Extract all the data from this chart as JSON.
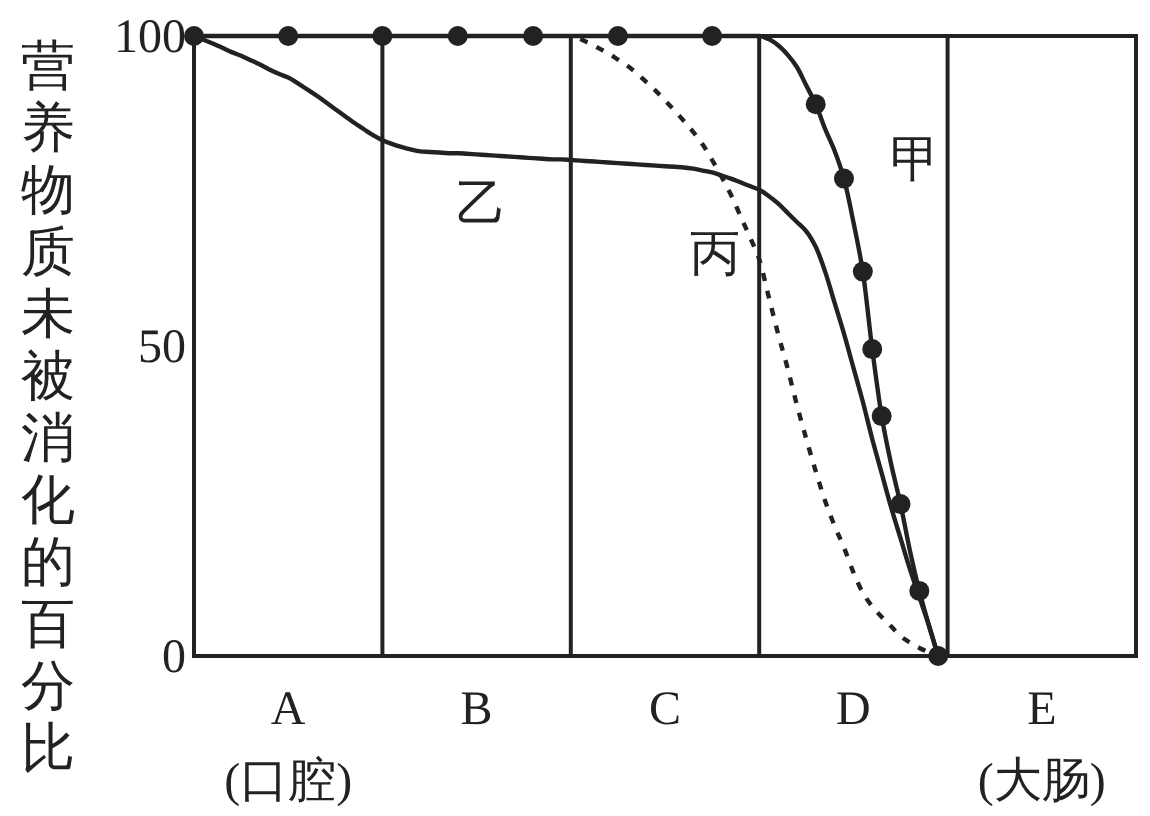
{
  "chart_data": {
    "type": "line",
    "ylabel": "营养物质未被消化的百分比",
    "ylim": [
      0,
      100
    ],
    "yticks": [
      0,
      50,
      100
    ],
    "categories": [
      null,
      null,
      null,
      null,
      null,
      null,
      null,
      null,
      null,
      null,
      "A\n(口腔)",
      null,
      null,
      null,
      null,
      null,
      null,
      null,
      null,
      null,
      null,
      null,
      null,
      null,
      null,
      null,
      null,
      null,
      null,
      null,
      "B",
      null,
      null,
      null,
      null,
      null,
      null,
      null,
      null,
      null,
      null,
      null,
      null,
      null,
      null,
      null,
      null,
      null,
      null,
      null,
      "C",
      null,
      null,
      null,
      null,
      null,
      null,
      null,
      null,
      null,
      null,
      null,
      null,
      null,
      null,
      null,
      null,
      null,
      null,
      null,
      "D",
      null,
      null,
      null,
      null,
      null,
      null,
      null,
      null,
      null,
      null,
      null,
      null,
      null,
      null,
      null,
      null,
      null,
      null,
      null,
      "E\n(大肠)",
      null,
      null,
      null,
      null,
      null,
      null,
      null,
      null,
      null,
      null
    ],
    "marker": "none",
    "series": [
      {
        "name": "甲",
        "color": "#222222",
        "line_style": "solid",
        "values": [
          null,
          100,
          100,
          100,
          100,
          100,
          100,
          100,
          100,
          100,
          100,
          100,
          100,
          100,
          100,
          100,
          100,
          100,
          100,
          100,
          100,
          100,
          100,
          100,
          100,
          100,
          100,
          100,
          100,
          100,
          100,
          100,
          100,
          100,
          100,
          100,
          100,
          100,
          100,
          100,
          100,
          100,
          100,
          100,
          100,
          100,
          100,
          100,
          100,
          100,
          100,
          100,
          100,
          100,
          100,
          100,
          100,
          100,
          100,
          100,
          100,
          99.5,
          98.5,
          97,
          95,
          92,
          89,
          85,
          81.5,
          77,
          70,
          62,
          49.5,
          38.7,
          31,
          24.5,
          17,
          10.5,
          5,
          0,
          null,
          null,
          null,
          null,
          null,
          null,
          null,
          null,
          null,
          null,
          null,
          null,
          null,
          null,
          null,
          null,
          null,
          null,
          null,
          null,
          null
        ]
      },
      {
        "type": "scatter",
        "color": "#222222",
        "marker": "circle",
        "values": [
          100,
          null,
          null,
          null,
          null,
          null,
          null,
          null,
          null,
          null,
          100,
          null,
          null,
          null,
          null,
          null,
          null,
          null,
          null,
          null,
          100,
          null,
          null,
          null,
          null,
          null,
          null,
          null,
          100,
          null,
          null,
          null,
          null,
          null,
          null,
          null,
          100,
          null,
          null,
          null,
          null,
          null,
          null,
          null,
          null,
          100,
          null,
          null,
          null,
          null,
          null,
          null,
          null,
          null,
          null,
          100,
          null,
          null,
          null,
          null,
          null,
          null,
          null,
          null,
          null,
          null,
          89,
          null,
          null,
          77,
          null,
          62,
          49.5,
          38.7,
          null,
          24.5,
          null,
          10.5,
          null,
          0,
          null,
          null,
          null,
          null,
          null,
          null,
          null,
          null,
          null,
          null,
          null,
          null,
          null,
          null,
          null,
          null,
          null,
          null,
          null,
          null,
          null
        ]
      },
      {
        "name": "乙",
        "color": "#222222",
        "line_style": "solid",
        "values": [
          100,
          99.4,
          98.8,
          98.1,
          97.4,
          96.8,
          96.1,
          95.4,
          94.6,
          93.9,
          93.3,
          92.4,
          91.4,
          90.4,
          89.3,
          88.2,
          87.1,
          86,
          85,
          84,
          83.2,
          82.6,
          82.1,
          81.7,
          81.4,
          81.3,
          81.2,
          81.1,
          81.1,
          81,
          80.9,
          80.8,
          80.7,
          80.6,
          80.5,
          80.4,
          80.3,
          80.2,
          80.1,
          80.1,
          80,
          79.9,
          79.8,
          79.7,
          79.6,
          79.5,
          79.4,
          79.3,
          79.2,
          79.1,
          79,
          78.9,
          78.8,
          78.6,
          78.3,
          78,
          77.5,
          77,
          76.4,
          75.8,
          75.2,
          74.2,
          73,
          71.5,
          70,
          68.5,
          66,
          62,
          57,
          52,
          46.5,
          41,
          35,
          29.5,
          24,
          19,
          14,
          9.5,
          5,
          0,
          null,
          null,
          null,
          null,
          null,
          null,
          null,
          null,
          null,
          null,
          null,
          null,
          null,
          null,
          null,
          null,
          null,
          null,
          null,
          null,
          null
        ]
      },
      {
        "name": "丙",
        "color": "#222222",
        "line_style": "dashed",
        "values": [
          null,
          null,
          null,
          null,
          null,
          null,
          null,
          null,
          null,
          null,
          null,
          null,
          null,
          null,
          null,
          null,
          null,
          null,
          null,
          null,
          null,
          null,
          null,
          null,
          null,
          null,
          null,
          null,
          null,
          null,
          null,
          null,
          null,
          null,
          null,
          null,
          null,
          null,
          null,
          null,
          null,
          99.5,
          98.8,
          98,
          97.2,
          96.2,
          95.2,
          94,
          92.6,
          91.2,
          89.6,
          88,
          86.3,
          84.5,
          82.5,
          80,
          77.3,
          74.4,
          71,
          67.6,
          64,
          58,
          52,
          46.5,
          40.5,
          35,
          29.8,
          25,
          21,
          17.5,
          13.5,
          10.2,
          8,
          6.3,
          4.8,
          3.2,
          2.2,
          1.3,
          0.6,
          0,
          null,
          null,
          null,
          null,
          null,
          null,
          null,
          null,
          null,
          null,
          null,
          null,
          null,
          null,
          null,
          null,
          null,
          null,
          null,
          null,
          null
        ]
      }
    ]
  }
}
